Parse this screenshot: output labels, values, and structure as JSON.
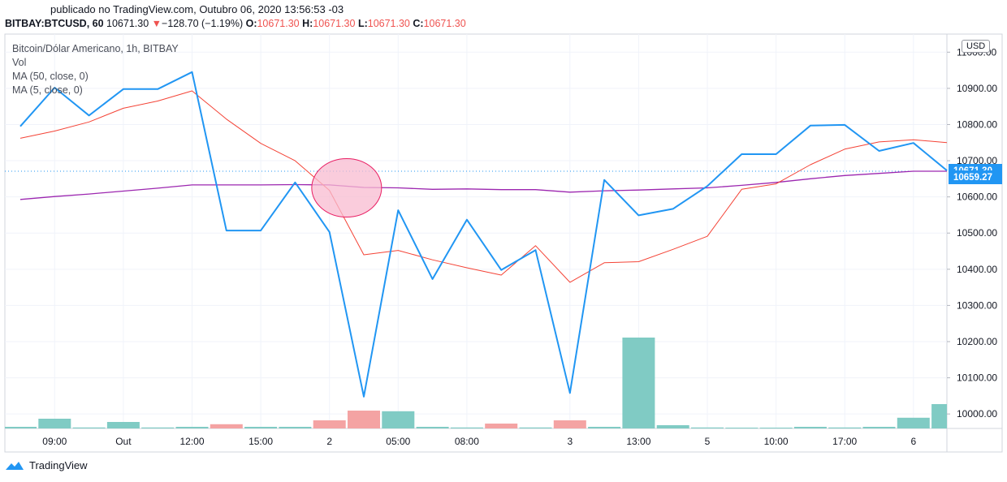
{
  "header": {
    "published": "publicado no TradingView.com, Outubro 06, 2020 13:56:53 -03",
    "symbol": "BITBAY:BTCUSD, 60",
    "last": "10671.30",
    "arrow": "▼",
    "change": "−128.70 (−1.19%)",
    "o_label": "O:",
    "o_value": "10671.30",
    "h_label": "H:",
    "h_value": "10671.30",
    "l_label": "L:",
    "l_value": "10671.30",
    "c_label": "C:",
    "c_value": "10671.30"
  },
  "legend": {
    "title": "Bitcoin/Dólar Americano, 1h, BITBAY",
    "vol": "Vol",
    "ma50": "MA (50, close, 0)",
    "ma5": "MA (5, close, 0)"
  },
  "axis": {
    "unit": "USD",
    "price_tag_last": "10671.30",
    "price_tag_ma": "10659.27"
  },
  "footer": {
    "brand": "TradingView"
  },
  "colors": {
    "price": "#2196f3",
    "ma5": "#f44336",
    "ma50": "#9c27b0",
    "vol_up": "#80cbc4",
    "vol_down": "#f4a3a3",
    "highlight": "#f8bbd0",
    "tag": "#2196f3"
  },
  "chart_data": {
    "type": "line",
    "title": "Bitcoin/Dólar Americano, 1h, BITBAY",
    "ylim": [
      9960,
      11050
    ],
    "yticks": [
      10000,
      10100,
      10200,
      10300,
      10400,
      10500,
      10600,
      10700,
      10800,
      10900,
      11000
    ],
    "ytick_labels": [
      "10000.00",
      "10100.00",
      "10200.00",
      "10300.00",
      "10400.00",
      "10500.00",
      "10600.00",
      "10700.00",
      "10800.00",
      "10900.00",
      "11000.00"
    ],
    "xticks": [
      {
        "i": 1,
        "label": "09:00"
      },
      {
        "i": 3,
        "label": "Out"
      },
      {
        "i": 5,
        "label": "12:00"
      },
      {
        "i": 7,
        "label": "15:00"
      },
      {
        "i": 9,
        "label": "2"
      },
      {
        "i": 11,
        "label": "05:00"
      },
      {
        "i": 13,
        "label": "08:00"
      },
      {
        "i": 16,
        "label": "3"
      },
      {
        "i": 18,
        "label": "13:00"
      },
      {
        "i": 20,
        "label": "5"
      },
      {
        "i": 22,
        "label": "10:00"
      },
      {
        "i": 24,
        "label": "17:00"
      },
      {
        "i": 26,
        "label": "6"
      }
    ],
    "series": [
      {
        "name": "BITBAY:BTCUSD",
        "values": [
          10795,
          10902,
          10825,
          10898,
          10898,
          10945,
          10507,
          10507,
          10640,
          10503,
          10048,
          10563,
          10373,
          10537,
          10398,
          10453,
          10058,
          10647,
          10549,
          10567,
          10630,
          10718,
          10718,
          10797,
          10799,
          10727,
          10749,
          10671
        ]
      },
      {
        "name": "MA (5, close, 0)",
        "values": [
          10762,
          10782,
          10807,
          10845,
          10865,
          10893,
          10815,
          10748,
          10700,
          10618,
          10440,
          10452,
          10426,
          10404,
          10384,
          10465,
          10364,
          10418,
          10421,
          10455,
          10491,
          10621,
          10636,
          10689,
          10732,
          10752,
          10758,
          10750
        ]
      },
      {
        "name": "MA (50, close, 0)",
        "values": [
          10593,
          10601,
          10608,
          10616,
          10624,
          10633,
          10633,
          10633,
          10634,
          10633,
          10626,
          10625,
          10621,
          10622,
          10620,
          10620,
          10613,
          10617,
          10619,
          10622,
          10625,
          10632,
          10640,
          10650,
          10659,
          10665,
          10671,
          10671
        ]
      }
    ],
    "volume": [
      {
        "v": 0.5,
        "dir": "up"
      },
      {
        "v": 3.0,
        "dir": "up"
      },
      {
        "v": 0.3,
        "dir": "up"
      },
      {
        "v": 2.0,
        "dir": "up"
      },
      {
        "v": 0.3,
        "dir": "up"
      },
      {
        "v": 0.5,
        "dir": "up"
      },
      {
        "v": 1.3,
        "dir": "down"
      },
      {
        "v": 0.5,
        "dir": "up"
      },
      {
        "v": 0.5,
        "dir": "up"
      },
      {
        "v": 2.5,
        "dir": "down"
      },
      {
        "v": 5.5,
        "dir": "down"
      },
      {
        "v": 5.3,
        "dir": "up"
      },
      {
        "v": 0.5,
        "dir": "up"
      },
      {
        "v": 0.3,
        "dir": "up"
      },
      {
        "v": 1.5,
        "dir": "down"
      },
      {
        "v": 0.3,
        "dir": "up"
      },
      {
        "v": 2.5,
        "dir": "down"
      },
      {
        "v": 0.5,
        "dir": "up"
      },
      {
        "v": 28,
        "dir": "up"
      },
      {
        "v": 1.0,
        "dir": "up"
      },
      {
        "v": 0.3,
        "dir": "up"
      },
      {
        "v": 0.2,
        "dir": "up"
      },
      {
        "v": 0.2,
        "dir": "up"
      },
      {
        "v": 0.5,
        "dir": "up"
      },
      {
        "v": 0.3,
        "dir": "up"
      },
      {
        "v": 0.5,
        "dir": "up"
      },
      {
        "v": 3.3,
        "dir": "up"
      },
      {
        "v": 7.5,
        "dir": "up"
      }
    ],
    "annotation": {
      "type": "ellipse",
      "at_index": 9.5,
      "at_value": 10625
    }
  }
}
